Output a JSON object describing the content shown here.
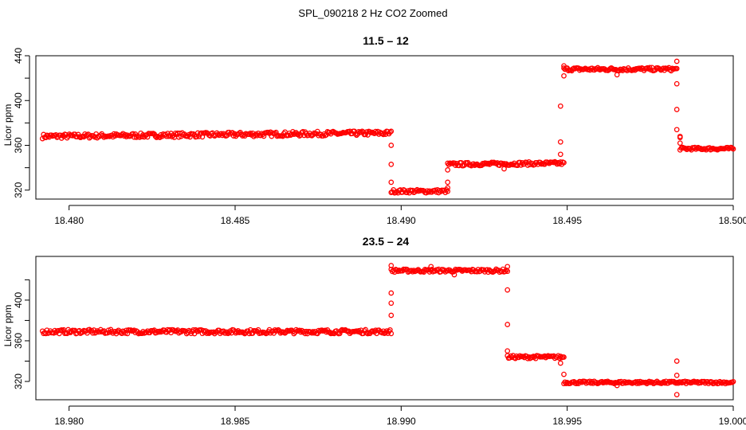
{
  "figure_title": "SPL_090218  2 Hz CO2 Zoomed",
  "colors": {
    "points": "#ff0000",
    "axes": "#000000",
    "background": "#ffffff"
  },
  "chart_data": [
    {
      "type": "scatter",
      "title": "11.5 – 12",
      "ylabel": "Licor ppm",
      "xlabel": "",
      "xlim": [
        18.479,
        18.5
      ],
      "ylim": [
        312,
        440
      ],
      "grid": false,
      "x_ticks": [
        "18.480",
        "18.485",
        "18.490",
        "18.495",
        "18.500"
      ],
      "y_ticks": [
        "320",
        "360",
        "400",
        "440"
      ],
      "series": [
        {
          "segments": [
            {
              "x": [
                18.4792,
                18.4897
              ],
              "y": [
                368,
                371
              ],
              "noise": 2
            },
            {
              "x": [
                18.4897,
                18.4914
              ],
              "y": [
                319,
                319
              ],
              "noise": 1.5
            },
            {
              "x": [
                18.4914,
                18.4949
              ],
              "y": [
                343,
                344
              ],
              "noise": 1.5
            },
            {
              "x": [
                18.4949,
                18.4983
              ],
              "y": [
                428,
                428
              ],
              "noise": 1.5
            },
            {
              "x": [
                18.4984,
                18.5
              ],
              "y": [
                357,
                357
              ],
              "noise": 1.2
            }
          ],
          "transition_points": [
            [
              18.4897,
              360
            ],
            [
              18.4897,
              343
            ],
            [
              18.4897,
              327
            ],
            [
              18.4914,
              338
            ],
            [
              18.4914,
              327
            ],
            [
              18.4914,
              322
            ],
            [
              18.4948,
              395
            ],
            [
              18.4948,
              352
            ],
            [
              18.4948,
              363
            ],
            [
              18.4949,
              422
            ],
            [
              18.4949,
              431
            ],
            [
              18.4983,
              415
            ],
            [
              18.4983,
              392
            ],
            [
              18.4983,
              374
            ],
            [
              18.4984,
              368
            ],
            [
              18.4984,
              367
            ],
            [
              18.4984,
              362
            ],
            [
              18.4983,
              435
            ],
            [
              18.4965,
              423
            ],
            [
              18.4931,
              339
            ]
          ]
        }
      ]
    },
    {
      "type": "scatter",
      "title": "23.5 – 24",
      "ylabel": "Licor ppm",
      "xlabel": "",
      "xlim": [
        18.979,
        19.0
      ],
      "ylim": [
        302,
        443
      ],
      "grid": false,
      "x_ticks": [
        "18.980",
        "18.985",
        "18.990",
        "18.995",
        "19.000"
      ],
      "y_ticks": [
        "320",
        "360",
        "400"
      ],
      "series": [
        {
          "segments": [
            {
              "x": [
                18.9792,
                18.9897
              ],
              "y": [
                369,
                369
              ],
              "noise": 2
            },
            {
              "x": [
                18.9897,
                18.9932
              ],
              "y": [
                429,
                429
              ],
              "noise": 1.5
            },
            {
              "x": [
                18.9932,
                18.9949
              ],
              "y": [
                344,
                344
              ],
              "noise": 1.5
            },
            {
              "x": [
                18.9949,
                19.0
              ],
              "y": [
                319,
                319
              ],
              "noise": 1.2
            }
          ],
          "transition_points": [
            [
              18.9897,
              407
            ],
            [
              18.9897,
              385
            ],
            [
              18.9897,
              397
            ],
            [
              18.9897,
              434
            ],
            [
              18.9932,
              410
            ],
            [
              18.9932,
              376
            ],
            [
              18.9932,
              350
            ],
            [
              18.9932,
              433
            ],
            [
              18.9948,
              338
            ],
            [
              18.9949,
              327
            ],
            [
              18.9983,
              340
            ],
            [
              18.9983,
              326
            ],
            [
              18.9983,
              307
            ],
            [
              18.9965,
              316
            ],
            [
              18.9916,
              425
            ],
            [
              18.9909,
              433
            ]
          ]
        }
      ]
    }
  ]
}
